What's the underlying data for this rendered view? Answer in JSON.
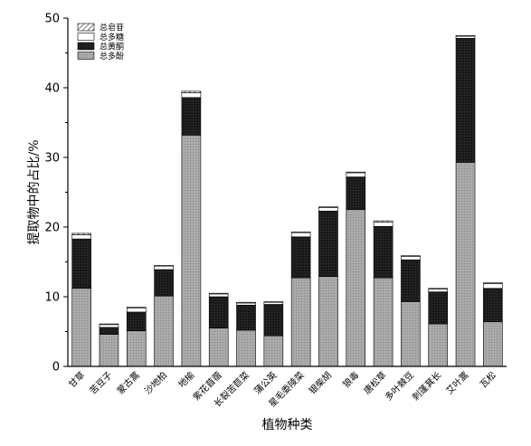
{
  "chart_data": {
    "type": "bar",
    "stacked": true,
    "title": "",
    "xlabel": "植物种类",
    "ylabel": "提取物中的占比/%",
    "ylim": [
      0,
      50
    ],
    "yticks": [
      0,
      10,
      20,
      30,
      40,
      50
    ],
    "grid": false,
    "legend_position": "top-left",
    "categories": [
      "甘草",
      "苦豆子",
      "蒙古蒿",
      "沙地柏",
      "地榆",
      "紫花苜蓿",
      "长裂苦苣菜",
      "蒲公英",
      "星毛委陵菜",
      "银柴胡",
      "狼毒",
      "唐松草",
      "多叶棘豆",
      "刺蓬萁长",
      "艾叶蒿",
      "瓦松"
    ],
    "series": [
      {
        "name": "总多酚",
        "color": "#a6a6a6",
        "values": [
          11.2,
          4.6,
          5.1,
          10.1,
          33.2,
          5.5,
          5.2,
          4.4,
          12.7,
          12.9,
          22.5,
          12.7,
          9.3,
          6.1,
          29.3,
          6.4
        ]
      },
      {
        "name": "总黄酮",
        "color": "#1a1a1a",
        "values": [
          7.1,
          1.0,
          2.7,
          3.8,
          5.4,
          4.5,
          3.6,
          4.5,
          5.9,
          9.4,
          4.7,
          7.4,
          6.0,
          4.6,
          17.8,
          4.8
        ]
      },
      {
        "name": "总多糖",
        "color": "#ffffff",
        "values": [
          0.6,
          0.4,
          0.6,
          0.5,
          0.7,
          0.4,
          0.3,
          0.3,
          0.6,
          0.5,
          0.6,
          0.6,
          0.5,
          0.4,
          0.3,
          0.7
        ]
      },
      {
        "name": "总皂苷",
        "color": "#ffffff",
        "values": [
          0.2,
          0.1,
          0.1,
          0.1,
          0.2,
          0.1,
          0.1,
          0.1,
          0.1,
          0.1,
          0.1,
          0.2,
          0.1,
          0.1,
          0.1,
          0.1
        ]
      }
    ]
  }
}
